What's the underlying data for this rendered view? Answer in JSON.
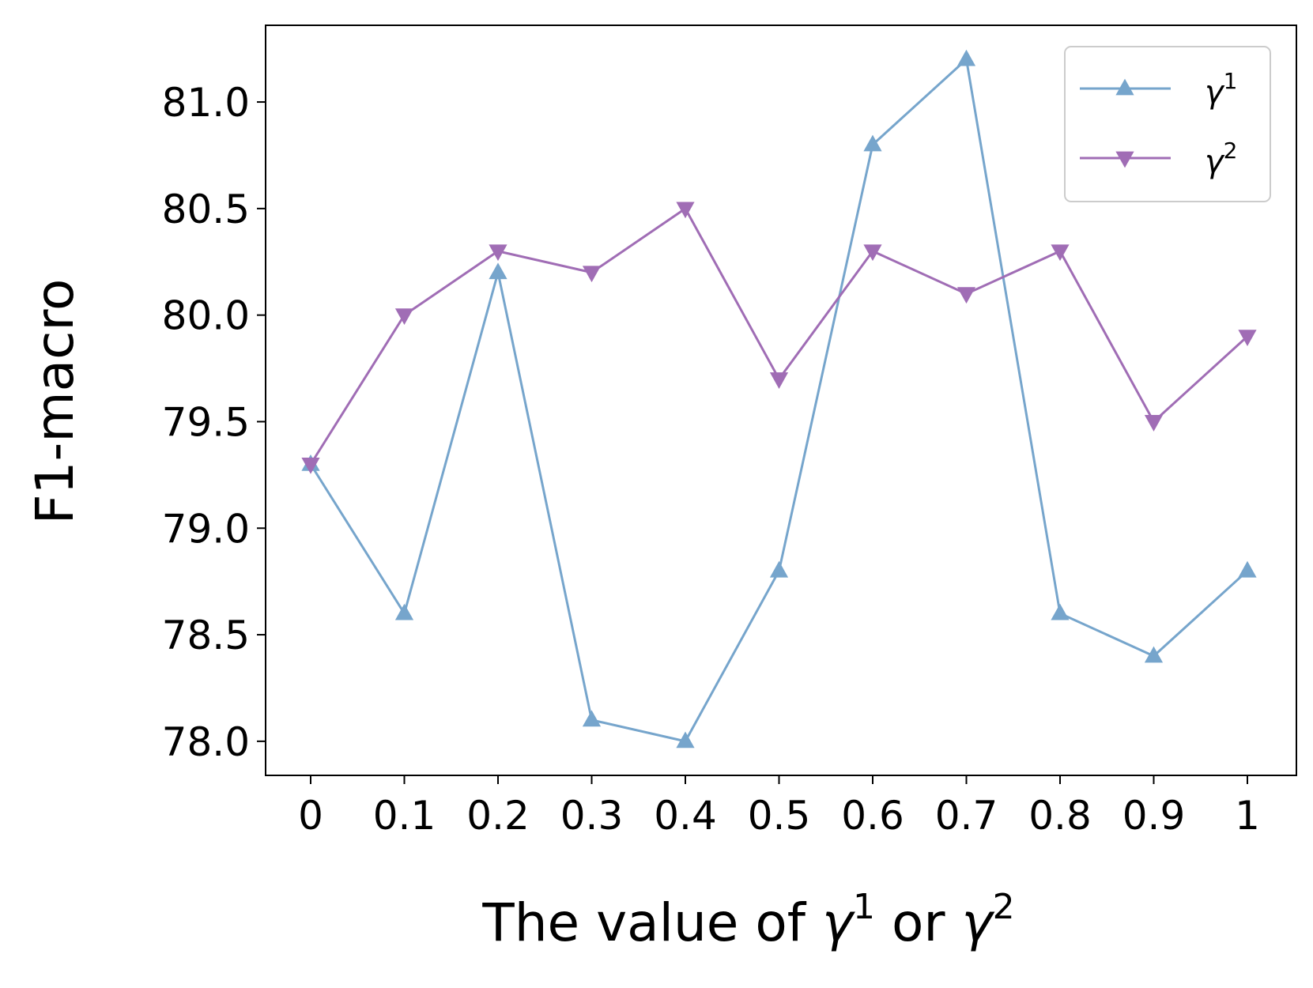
{
  "chart_data": {
    "type": "line",
    "categories": [
      "0",
      "0.1",
      "0.2",
      "0.3",
      "0.4",
      "0.5",
      "0.6",
      "0.7",
      "0.8",
      "0.9",
      "1"
    ],
    "series": [
      {
        "name": "γ¹",
        "legend_base": "γ",
        "legend_sup": "1",
        "marker": "triangle-up",
        "color": "#76a5cc",
        "values": [
          79.3,
          78.6,
          80.2,
          78.1,
          78.0,
          78.8,
          80.8,
          81.2,
          78.6,
          78.4,
          78.8
        ]
      },
      {
        "name": "γ²",
        "legend_base": "γ",
        "legend_sup": "2",
        "marker": "triangle-down",
        "color": "#a06db5",
        "values": [
          79.3,
          80.0,
          80.3,
          80.2,
          80.5,
          79.7,
          80.3,
          80.1,
          80.3,
          79.5,
          79.9
        ]
      }
    ],
    "ylabel": "F1-macro",
    "xlabel": {
      "prefix": "The value of ",
      "sym1": "γ",
      "sup1": "1",
      "middle": " or ",
      "sym2": "γ",
      "sup2": "2"
    },
    "yticks": [
      78.0,
      78.5,
      79.0,
      79.5,
      80.0,
      80.5,
      81.0
    ],
    "ytick_labels": [
      "78.0",
      "78.5",
      "79.0",
      "79.5",
      "80.0",
      "80.5",
      "81.0"
    ],
    "ylim": [
      77.84,
      81.36
    ],
    "legend_position": "upper right",
    "grid": false
  }
}
